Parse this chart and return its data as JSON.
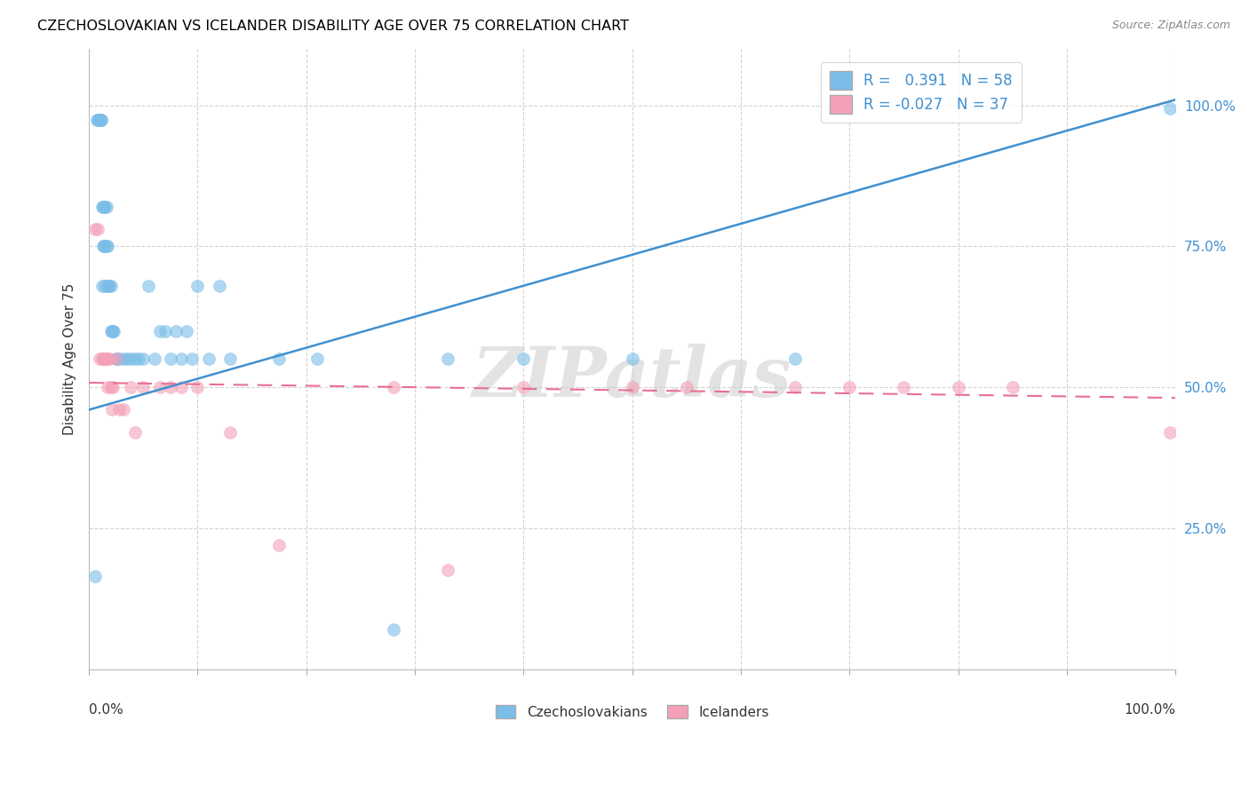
{
  "title": "CZECHOSLOVAKIAN VS ICELANDER DISABILITY AGE OVER 75 CORRELATION CHART",
  "source": "Source: ZipAtlas.com",
  "ylabel": "Disability Age Over 75",
  "ytick_labels": [
    "100.0%",
    "75.0%",
    "50.0%",
    "25.0%"
  ],
  "ytick_values": [
    1.0,
    0.75,
    0.5,
    0.25
  ],
  "xlim": [
    0.0,
    1.0
  ],
  "ylim": [
    0.0,
    1.1
  ],
  "watermark": "ZIPatlas",
  "czech_color": "#7bbde8",
  "iceland_color": "#f4a0b8",
  "czech_line_color": "#4090d0",
  "iceland_line_color": "#e87090",
  "czech_R": 0.391,
  "czech_N": 58,
  "iceland_R": -0.027,
  "iceland_N": 37,
  "czech_x": [
    0.006,
    0.007,
    0.008,
    0.009,
    0.01,
    0.01,
    0.011,
    0.011,
    0.012,
    0.012,
    0.013,
    0.013,
    0.014,
    0.014,
    0.015,
    0.015,
    0.015,
    0.016,
    0.016,
    0.017,
    0.017,
    0.018,
    0.019,
    0.02,
    0.02,
    0.021,
    0.022,
    0.023,
    0.025,
    0.026,
    0.028,
    0.032,
    0.035,
    0.038,
    0.042,
    0.046,
    0.05,
    0.055,
    0.06,
    0.065,
    0.07,
    0.075,
    0.08,
    0.085,
    0.09,
    0.095,
    0.1,
    0.11,
    0.12,
    0.13,
    0.175,
    0.21,
    0.28,
    0.33,
    0.4,
    0.5,
    0.65,
    0.995
  ],
  "czech_y": [
    0.165,
    0.975,
    0.975,
    0.975,
    0.975,
    0.975,
    0.975,
    0.975,
    0.68,
    0.82,
    0.75,
    0.82,
    0.82,
    0.75,
    0.82,
    0.75,
    0.68,
    0.75,
    0.82,
    0.68,
    0.75,
    0.68,
    0.68,
    0.68,
    0.6,
    0.6,
    0.6,
    0.6,
    0.55,
    0.55,
    0.55,
    0.55,
    0.55,
    0.55,
    0.55,
    0.55,
    0.55,
    0.68,
    0.55,
    0.6,
    0.6,
    0.55,
    0.6,
    0.55,
    0.6,
    0.55,
    0.68,
    0.55,
    0.68,
    0.55,
    0.55,
    0.55,
    0.07,
    0.55,
    0.55,
    0.55,
    0.55,
    0.995
  ],
  "iceland_x": [
    0.006,
    0.008,
    0.01,
    0.012,
    0.013,
    0.014,
    0.015,
    0.016,
    0.017,
    0.018,
    0.019,
    0.02,
    0.021,
    0.022,
    0.025,
    0.028,
    0.032,
    0.038,
    0.042,
    0.05,
    0.065,
    0.075,
    0.085,
    0.1,
    0.13,
    0.175,
    0.28,
    0.33,
    0.4,
    0.5,
    0.55,
    0.65,
    0.7,
    0.75,
    0.8,
    0.85,
    0.995
  ],
  "iceland_y": [
    0.78,
    0.78,
    0.55,
    0.55,
    0.55,
    0.55,
    0.55,
    0.55,
    0.5,
    0.55,
    0.55,
    0.5,
    0.46,
    0.5,
    0.55,
    0.46,
    0.46,
    0.5,
    0.42,
    0.5,
    0.5,
    0.5,
    0.5,
    0.5,
    0.42,
    0.22,
    0.5,
    0.175,
    0.5,
    0.5,
    0.5,
    0.5,
    0.5,
    0.5,
    0.5,
    0.5,
    0.42
  ],
  "czech_line_x0": 0.0,
  "czech_line_x1": 1.0,
  "czech_line_y0": 0.46,
  "czech_line_y1": 1.01,
  "iceland_line_x0": 0.0,
  "iceland_line_x1": 1.0,
  "iceland_line_y0": 0.508,
  "iceland_line_y1": 0.481
}
